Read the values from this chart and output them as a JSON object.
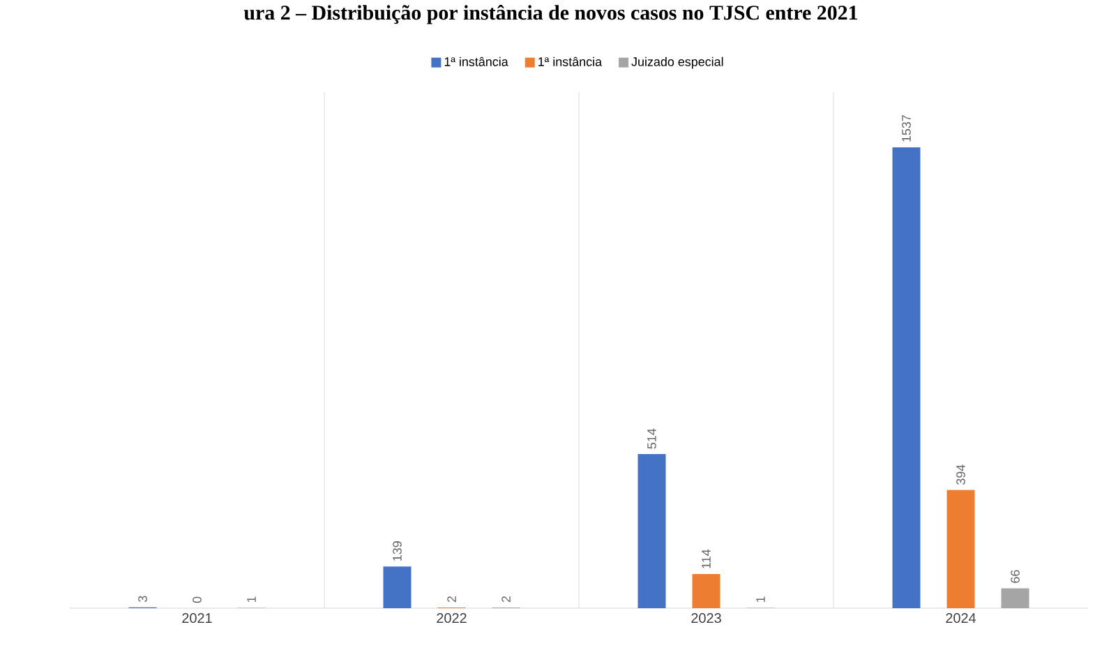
{
  "chart_data": {
    "type": "bar",
    "title": "ura 2 – Distribuição por instância de novos casos no TJSC entre 2021",
    "categories": [
      "2021",
      "2022",
      "2023",
      "2024"
    ],
    "series": [
      {
        "name": "1ª instância",
        "color": "#4472c4",
        "values": [
          3,
          139,
          514,
          1537
        ]
      },
      {
        "name": "1ª instância",
        "color": "#ed7d31",
        "values": [
          0,
          2,
          114,
          394
        ]
      },
      {
        "name": "Juizado especial",
        "color": "#a5a5a5",
        "values": [
          1,
          2,
          1,
          66
        ]
      }
    ],
    "data_labels": true,
    "legend": "top",
    "grid": "x"
  }
}
